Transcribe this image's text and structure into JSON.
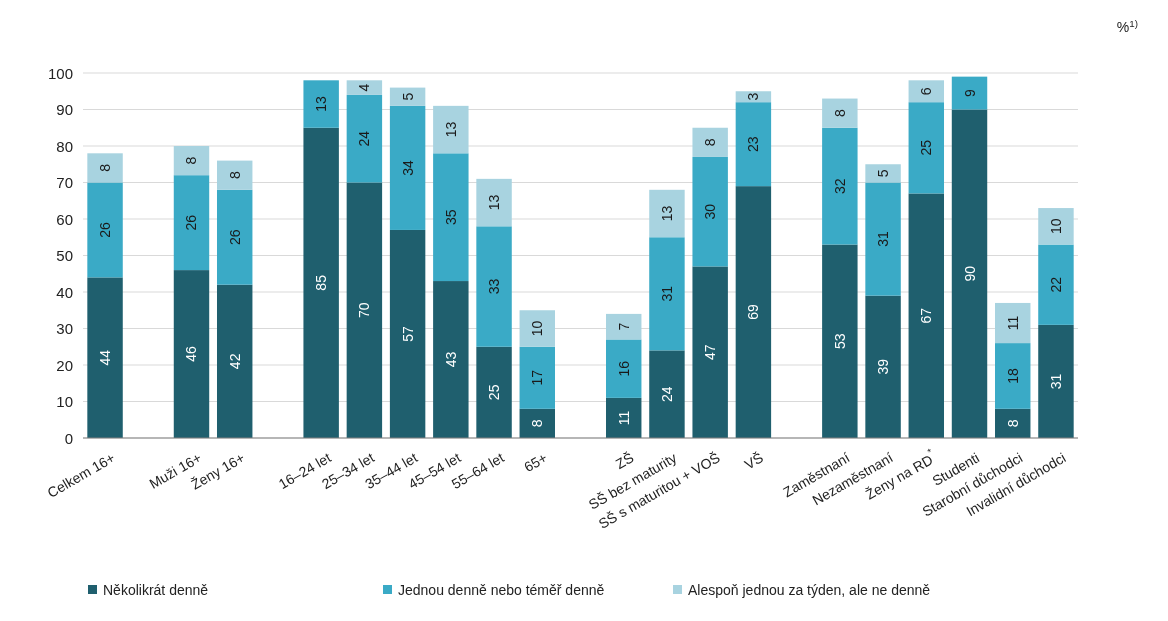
{
  "chart_data": {
    "type": "bar",
    "stacked": true,
    "ylabel": "%$^{1)}$",
    "categories": [
      "Celkem 16+",
      null,
      "Muži 16+",
      "Ženy 16+",
      null,
      "16–24 let",
      "25–34 let",
      "35–44 let",
      "45–54 let",
      "55–64 let",
      "65+",
      null,
      "ZŠ",
      "SŠ bez maturity",
      "SŠ s maturitou + VOŠ",
      "VŠ",
      null,
      "Zaměstnaní",
      "Nezaměstnaní",
      "Ženy na RD$^{*}$",
      "Studenti",
      "Starobní důchodci",
      "Invalidní důchodci"
    ],
    "series": [
      {
        "name": "Několikrát denně",
        "color": "#1f5f6e",
        "values": [
          44,
          null,
          46,
          42,
          null,
          85,
          70,
          57,
          43,
          25,
          8,
          null,
          11,
          24,
          47,
          69,
          null,
          53,
          39,
          67,
          90,
          8,
          31
        ]
      },
      {
        "name": "Jednou denně nebo téměř denně",
        "color": "#3aaac6",
        "values": [
          26,
          null,
          26,
          26,
          null,
          13,
          24,
          34,
          35,
          33,
          17,
          null,
          16,
          31,
          30,
          23,
          null,
          32,
          31,
          25,
          9,
          18,
          22
        ]
      },
      {
        "name": "Alespoň jednou za týden, ale ne denně",
        "color": "#a8d3e0",
        "values": [
          8,
          null,
          8,
          8,
          null,
          null,
          4,
          5,
          13,
          13,
          10,
          null,
          7,
          13,
          8,
          3,
          null,
          8,
          5,
          6,
          null,
          11,
          10
        ]
      }
    ],
    "ylim": [
      0,
      100
    ],
    "yticks": [
      0,
      10,
      20,
      30,
      40,
      50,
      60,
      70,
      80,
      90,
      100
    ],
    "grid": "y",
    "legend": "bottom",
    "data_labels": true
  }
}
